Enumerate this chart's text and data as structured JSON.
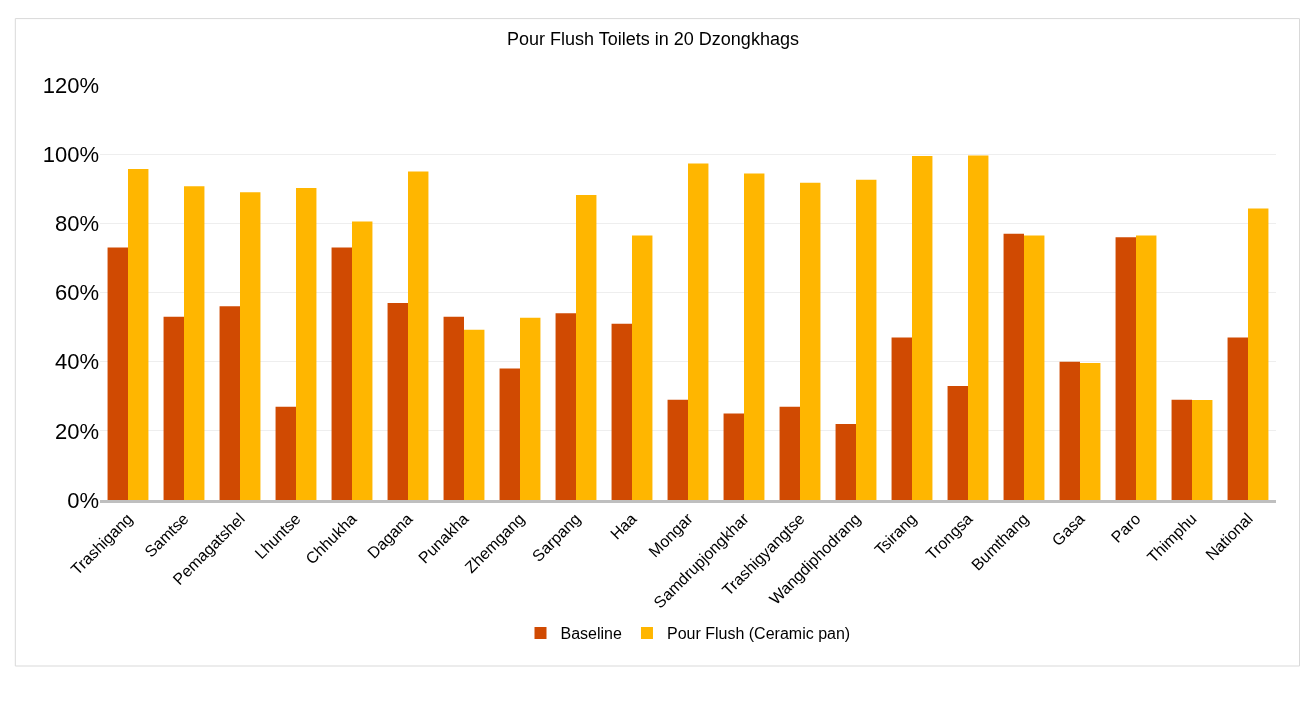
{
  "chart_data": {
    "type": "bar",
    "title": "Pour Flush Toilets in 20 Dzongkhags",
    "categories": [
      "Trashigang",
      "Samtse",
      "Pemagatshel",
      "Lhuntse",
      "Chhukha",
      "Dagana",
      "Punakha",
      "Zhemgang",
      "Sarpang",
      "Haa",
      "Mongar",
      "Samdrupjongkhar",
      "Trashigyangtse",
      "Wangdiphodrang",
      "Tsirang",
      "Trongsa",
      "Bumthang",
      "Gasa",
      "Paro",
      "Thimphu",
      "National"
    ],
    "series": [
      {
        "name": "Baseline",
        "color": "#d04a02",
        "values": [
          73,
          53,
          56,
          27,
          73,
          57,
          53,
          38,
          54,
          51,
          29,
          25,
          27,
          22,
          47,
          33,
          77,
          40,
          76,
          29,
          47
        ]
      },
      {
        "name": "Pour Flush (Ceramic pan)",
        "color": "#ffb600",
        "values": [
          95.7,
          90.7,
          89,
          90.2,
          80.5,
          95,
          49.2,
          52.7,
          88.2,
          76.5,
          97.3,
          94.4,
          91.7,
          92.6,
          99.5,
          99.6,
          76.5,
          39.6,
          76.5,
          28.9,
          84.3
        ]
      }
    ],
    "ylim": [
      0,
      120
    ],
    "yticks": [
      {
        "value": 0,
        "label": "0%"
      },
      {
        "value": 20,
        "label": "20%"
      },
      {
        "value": 40,
        "label": "40%"
      },
      {
        "value": 60,
        "label": "60%"
      },
      {
        "value": 80,
        "label": "80%"
      },
      {
        "value": 100,
        "label": "100%"
      },
      {
        "value": 120,
        "label": "120%"
      }
    ],
    "grid": "y",
    "legend": "bottom"
  }
}
